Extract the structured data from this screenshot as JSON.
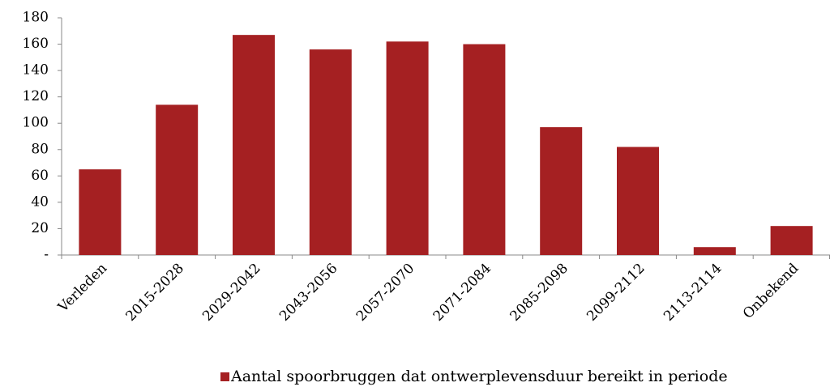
{
  "chart_data": {
    "type": "bar",
    "categories": [
      "Verleden",
      "2015-2028",
      "2029-2042",
      "2043-2056",
      "2057-2070",
      "2071-2084",
      "2085-2098",
      "2099-2112",
      "2113-2114",
      "Onbekend"
    ],
    "series": [
      {
        "name": "Aantal spoorbruggen dat ontwerplevensduur bereikt in periode",
        "color": "#a52022",
        "values": [
          65,
          114,
          167,
          156,
          162,
          160,
          97,
          82,
          6,
          22
        ]
      }
    ],
    "ylim": [
      0,
      180
    ],
    "yticks": [
      {
        "value": 0,
        "label": "-"
      },
      20,
      40,
      60,
      80,
      100,
      120,
      140,
      160,
      180
    ],
    "legend": "bottom"
  }
}
